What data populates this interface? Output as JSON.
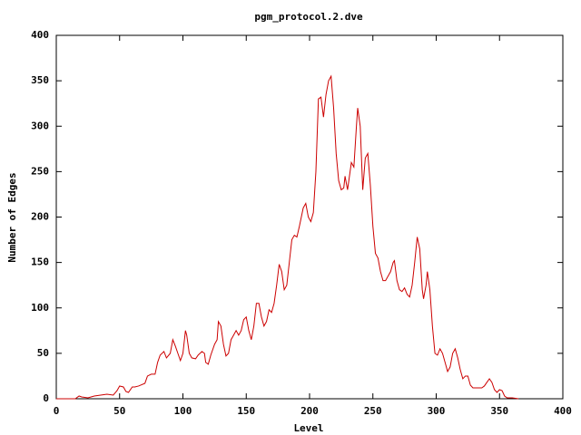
{
  "chart_data": {
    "type": "line",
    "title": "pgm_protocol.2.dve",
    "x_label": "Level",
    "y_label": "Number of Edges",
    "x": [
      0,
      15,
      18,
      20,
      25,
      30,
      35,
      40,
      45,
      48,
      50,
      53,
      55,
      57,
      60,
      62,
      65,
      70,
      72,
      75,
      78,
      80,
      82,
      85,
      87,
      90,
      92,
      94,
      96,
      98,
      100,
      102,
      103,
      105,
      107,
      110,
      112,
      115,
      117,
      118,
      120,
      122,
      125,
      127,
      128,
      130,
      132,
      134,
      136,
      138,
      140,
      142,
      144,
      146,
      148,
      150,
      152,
      154,
      156,
      158,
      160,
      162,
      164,
      166,
      168,
      170,
      172,
      174,
      176,
      178,
      180,
      182,
      184,
      186,
      188,
      190,
      192,
      195,
      197,
      199,
      201,
      203,
      205,
      207,
      209,
      211,
      213,
      215,
      217,
      219,
      221,
      223,
      225,
      227,
      228,
      230,
      232,
      233,
      235,
      237,
      238,
      240,
      242,
      244,
      246,
      248,
      250,
      252,
      254,
      256,
      258,
      260,
      262,
      264,
      266,
      267,
      269,
      271,
      273,
      275,
      277,
      279,
      281,
      283,
      285,
      287,
      289,
      290,
      292,
      293,
      295,
      297,
      299,
      301,
      303,
      305,
      307,
      309,
      311,
      313,
      315,
      317,
      319,
      321,
      323,
      325,
      327,
      329,
      332,
      336,
      338,
      340,
      342,
      344,
      346,
      348,
      350,
      352,
      354,
      356,
      360,
      365
    ],
    "series": [
      {
        "name": "Number of Edges",
        "color": "#cc0000",
        "values": [
          0,
          0,
          3,
          2,
          1,
          3,
          4,
          5,
          4,
          9,
          14,
          13,
          8,
          7,
          13,
          13,
          14,
          17,
          25,
          27,
          27,
          40,
          48,
          52,
          45,
          50,
          65,
          58,
          50,
          42,
          50,
          75,
          70,
          50,
          45,
          44,
          48,
          52,
          50,
          40,
          38,
          48,
          60,
          65,
          85,
          80,
          60,
          47,
          50,
          65,
          70,
          75,
          70,
          75,
          87,
          90,
          75,
          65,
          80,
          105,
          105,
          90,
          80,
          85,
          98,
          95,
          105,
          125,
          148,
          140,
          120,
          125,
          150,
          175,
          180,
          178,
          190,
          210,
          215,
          200,
          195,
          205,
          250,
          330,
          332,
          310,
          335,
          350,
          355,
          320,
          270,
          240,
          230,
          232,
          245,
          230,
          250,
          260,
          255,
          300,
          320,
          300,
          230,
          265,
          270,
          235,
          190,
          160,
          155,
          140,
          130,
          130,
          135,
          140,
          150,
          152,
          130,
          120,
          118,
          122,
          115,
          112,
          125,
          150,
          178,
          165,
          120,
          110,
          125,
          140,
          120,
          80,
          50,
          48,
          55,
          50,
          40,
          30,
          35,
          50,
          55,
          45,
          32,
          22,
          25,
          25,
          15,
          12,
          12,
          12,
          14,
          18,
          22,
          18,
          10,
          7,
          10,
          9,
          3,
          1,
          1,
          0
        ]
      }
    ],
    "xlim": [
      0,
      400
    ],
    "xticks": [
      0,
      50,
      100,
      150,
      200,
      250,
      300,
      350,
      400
    ],
    "ylim": [
      0,
      400
    ],
    "yticks": [
      0,
      50,
      100,
      150,
      200,
      250,
      300,
      350,
      400
    ]
  }
}
